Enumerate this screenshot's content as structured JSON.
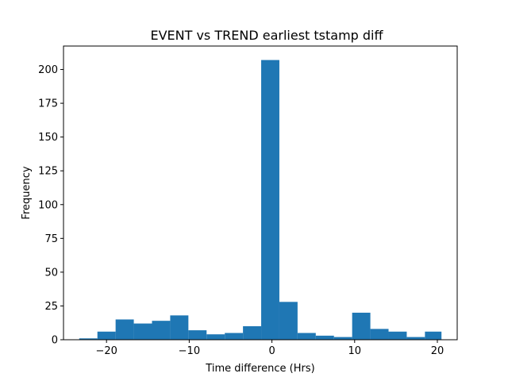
{
  "chart_data": {
    "type": "bar",
    "title": "EVENT vs TREND earliest tstamp diff",
    "xlabel": "Time difference (Hrs)",
    "ylabel": "Frequency",
    "xlim": [
      -25.2,
      22.4
    ],
    "ylim": [
      0,
      217.35
    ],
    "xticks": [
      -20,
      -10,
      0,
      10,
      20
    ],
    "yticks": [
      0,
      25,
      50,
      75,
      100,
      125,
      150,
      175,
      200
    ],
    "bar_color": "#1f77b4",
    "bin_edges": [
      -23.3,
      -21.1,
      -18.9,
      -16.7,
      -14.5,
      -12.3,
      -10.1,
      -7.9,
      -5.7,
      -3.5,
      -1.3,
      0.9,
      3.1,
      5.3,
      7.5,
      9.7,
      11.9,
      14.1,
      16.3,
      18.5,
      20.5
    ],
    "values": [
      1,
      6,
      15,
      12,
      14,
      18,
      7,
      4,
      5,
      10,
      207,
      28,
      5,
      3,
      2,
      20,
      8,
      6,
      2,
      6
    ]
  }
}
